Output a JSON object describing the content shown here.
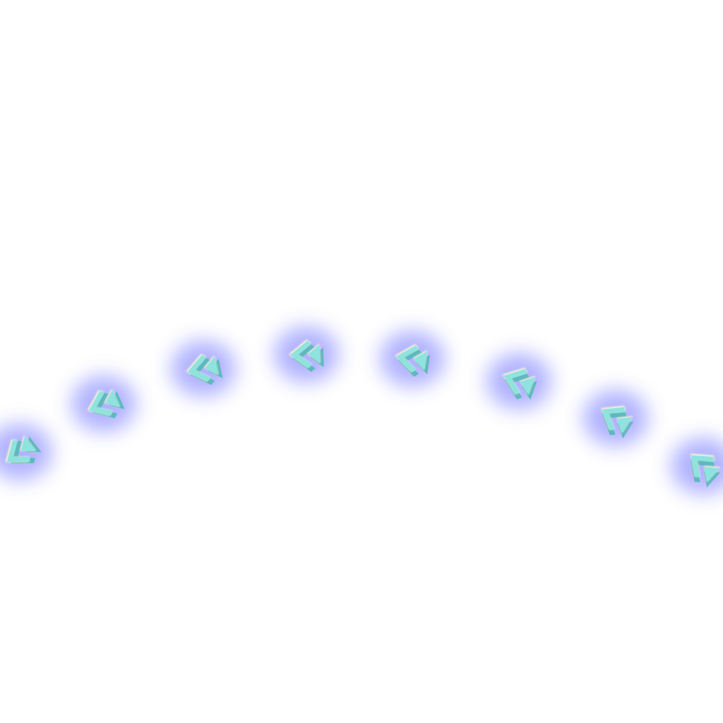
{
  "scene": {
    "background_color": "#ffffff",
    "icon_name": "double-chevron-left-icon",
    "icon_count": 8,
    "icon_face_color": "#8fe3df",
    "icon_edge_color": "#fff6cf",
    "icon_shadow_color": "#5fb8bd",
    "glow_color": "#6f73ff"
  }
}
